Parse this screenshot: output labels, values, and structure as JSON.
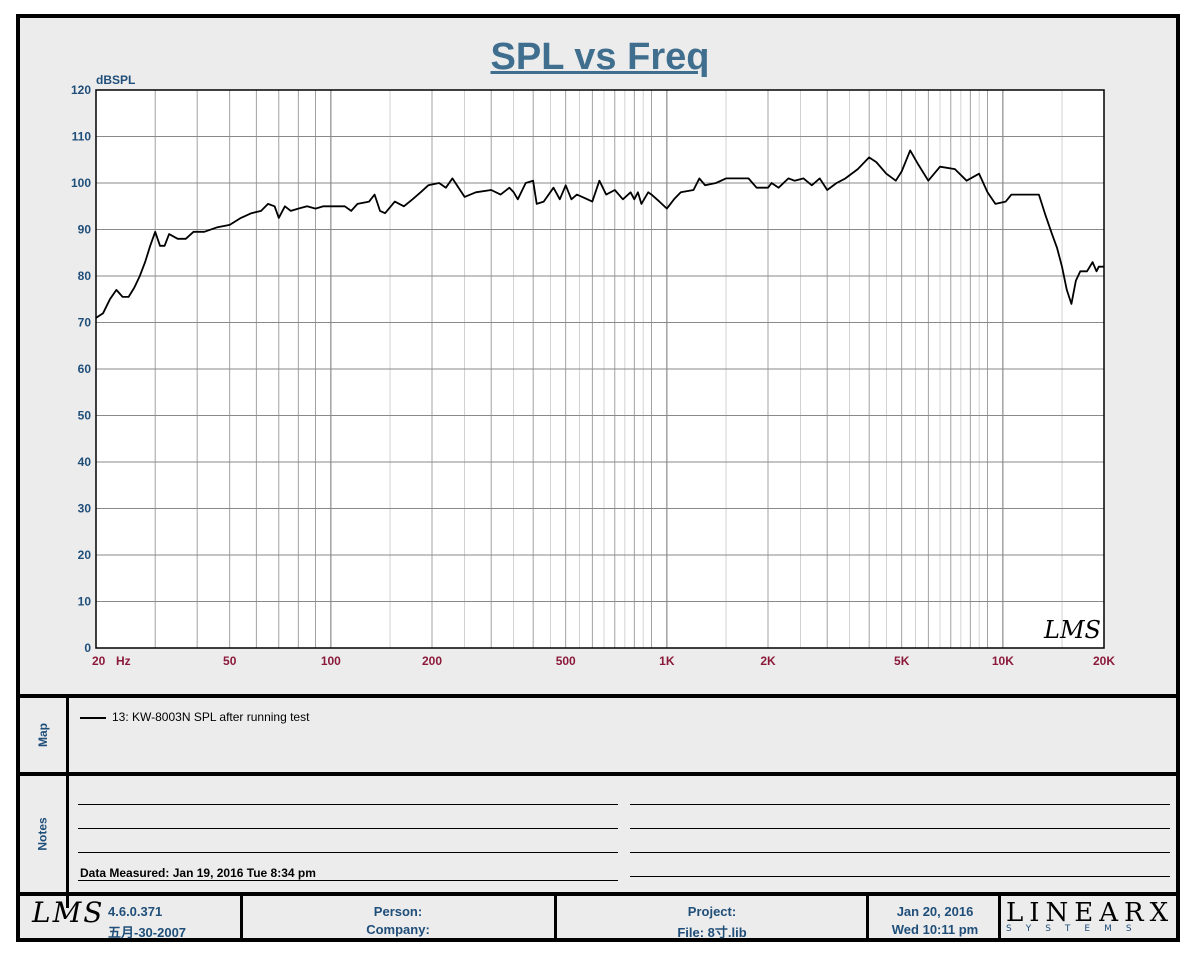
{
  "title": "SPL vs Freq",
  "chart_data": {
    "type": "line",
    "title": "SPL vs Freq",
    "ylabel": "dBSPL",
    "xlabel": "Hz",
    "xscale": "log",
    "xlim": [
      20,
      20000
    ],
    "ylim": [
      0,
      120
    ],
    "grid": true,
    "x_tick_labels": [
      {
        "value": 20,
        "label": "20"
      },
      {
        "value": 50,
        "label": "50"
      },
      {
        "value": 100,
        "label": "100"
      },
      {
        "value": 200,
        "label": "200"
      },
      {
        "value": 500,
        "label": "500"
      },
      {
        "value": 1000,
        "label": "1K"
      },
      {
        "value": 2000,
        "label": "2K"
      },
      {
        "value": 5000,
        "label": "5K"
      },
      {
        "value": 10000,
        "label": "10K"
      },
      {
        "value": 20000,
        "label": "20K"
      }
    ],
    "y_ticks": [
      0,
      10,
      20,
      30,
      40,
      50,
      60,
      70,
      80,
      90,
      100,
      110,
      120
    ],
    "series": [
      {
        "name": "13: KW-8003N SPL after  running test",
        "color": "#000000",
        "points": [
          [
            20,
            71
          ],
          [
            21,
            72
          ],
          [
            22,
            75
          ],
          [
            23,
            77
          ],
          [
            24,
            75.5
          ],
          [
            25,
            75.5
          ],
          [
            26,
            77.5
          ],
          [
            27,
            80
          ],
          [
            28,
            83
          ],
          [
            29,
            86.5
          ],
          [
            30,
            89.5
          ],
          [
            31,
            86.5
          ],
          [
            32,
            86.5
          ],
          [
            33,
            89
          ],
          [
            35,
            88
          ],
          [
            37,
            88
          ],
          [
            39,
            89.5
          ],
          [
            42,
            89.5
          ],
          [
            46,
            90.5
          ],
          [
            50,
            91
          ],
          [
            54,
            92.5
          ],
          [
            58,
            93.5
          ],
          [
            62,
            94
          ],
          [
            65,
            95.5
          ],
          [
            68,
            95
          ],
          [
            70,
            92.5
          ],
          [
            73,
            95
          ],
          [
            76,
            94
          ],
          [
            80,
            94.5
          ],
          [
            85,
            95
          ],
          [
            90,
            94.5
          ],
          [
            95,
            95
          ],
          [
            100,
            95
          ],
          [
            105,
            95
          ],
          [
            110,
            95
          ],
          [
            115,
            94
          ],
          [
            120,
            95.5
          ],
          [
            130,
            96
          ],
          [
            135,
            97.5
          ],
          [
            140,
            94
          ],
          [
            145,
            93.5
          ],
          [
            155,
            96
          ],
          [
            165,
            95
          ],
          [
            175,
            96.5
          ],
          [
            185,
            98
          ],
          [
            195,
            99.5
          ],
          [
            210,
            100
          ],
          [
            220,
            99
          ],
          [
            230,
            101
          ],
          [
            250,
            97
          ],
          [
            270,
            98
          ],
          [
            300,
            98.5
          ],
          [
            320,
            97.5
          ],
          [
            340,
            99
          ],
          [
            350,
            98
          ],
          [
            360,
            96.5
          ],
          [
            380,
            100
          ],
          [
            400,
            100.5
          ],
          [
            410,
            95.5
          ],
          [
            430,
            96
          ],
          [
            460,
            99
          ],
          [
            480,
            96.5
          ],
          [
            500,
            99.5
          ],
          [
            520,
            96.5
          ],
          [
            540,
            97.5
          ],
          [
            560,
            97
          ],
          [
            580,
            96.5
          ],
          [
            600,
            96
          ],
          [
            630,
            100.5
          ],
          [
            660,
            97.5
          ],
          [
            700,
            98.5
          ],
          [
            740,
            96.5
          ],
          [
            780,
            98
          ],
          [
            800,
            96.5
          ],
          [
            820,
            98
          ],
          [
            840,
            95.5
          ],
          [
            880,
            98
          ],
          [
            900,
            97.5
          ],
          [
            950,
            96
          ],
          [
            1000,
            94.5
          ],
          [
            1050,
            96.5
          ],
          [
            1100,
            98
          ],
          [
            1200,
            98.5
          ],
          [
            1250,
            101
          ],
          [
            1300,
            99.5
          ],
          [
            1400,
            100
          ],
          [
            1500,
            101
          ],
          [
            1600,
            101
          ],
          [
            1750,
            101
          ],
          [
            1850,
            99
          ],
          [
            2000,
            99
          ],
          [
            2050,
            100
          ],
          [
            2150,
            99
          ],
          [
            2300,
            101
          ],
          [
            2400,
            100.5
          ],
          [
            2550,
            101
          ],
          [
            2700,
            99.5
          ],
          [
            2850,
            101
          ],
          [
            3000,
            98.5
          ],
          [
            3200,
            100
          ],
          [
            3400,
            101
          ],
          [
            3700,
            103
          ],
          [
            4000,
            105.5
          ],
          [
            4200,
            104.5
          ],
          [
            4500,
            102
          ],
          [
            4800,
            100.5
          ],
          [
            5000,
            102.5
          ],
          [
            5300,
            107
          ],
          [
            5600,
            104
          ],
          [
            6000,
            100.5
          ],
          [
            6500,
            103.5
          ],
          [
            7200,
            103
          ],
          [
            7800,
            100.5
          ],
          [
            8500,
            102
          ],
          [
            9000,
            98
          ],
          [
            9500,
            95.5
          ],
          [
            10200,
            96
          ],
          [
            10600,
            97.5
          ],
          [
            12000,
            97.5
          ],
          [
            12800,
            97.5
          ],
          [
            13400,
            93
          ],
          [
            14000,
            89
          ],
          [
            14500,
            86
          ],
          [
            15000,
            82
          ],
          [
            15500,
            77
          ],
          [
            16000,
            74
          ],
          [
            16500,
            79
          ],
          [
            17000,
            81
          ],
          [
            17800,
            81
          ],
          [
            18500,
            83
          ],
          [
            19000,
            81
          ],
          [
            19300,
            82
          ],
          [
            20000,
            82
          ]
        ]
      }
    ]
  },
  "plot_logo": "LMS",
  "map": {
    "label": "Map",
    "entry": "13: KW-8003N SPL after  running test"
  },
  "notes": {
    "label": "Notes",
    "measured_prefix": "Data Measured:",
    "measured_value": "Jan 19, 2016  Tue  8:34 pm"
  },
  "footer": {
    "logo": "LMS",
    "version": "4.6.0.371",
    "build_date": "五月-30-2007",
    "person_label": "Person:",
    "company_label": "Company:",
    "project_label": "Project:",
    "file_label": "File: 8寸.lib",
    "date": "Jan 20, 2016",
    "time": "Wed 10:11 pm",
    "brand_main": "LINEARX",
    "brand_sub": "SYSTEMS"
  },
  "colors": {
    "title": "#3f6e8e",
    "axis_y_labels": "#1f4e79",
    "axis_x_labels": "#8b1a3a",
    "grid": "#8a8a8a",
    "background": "#ececec"
  }
}
